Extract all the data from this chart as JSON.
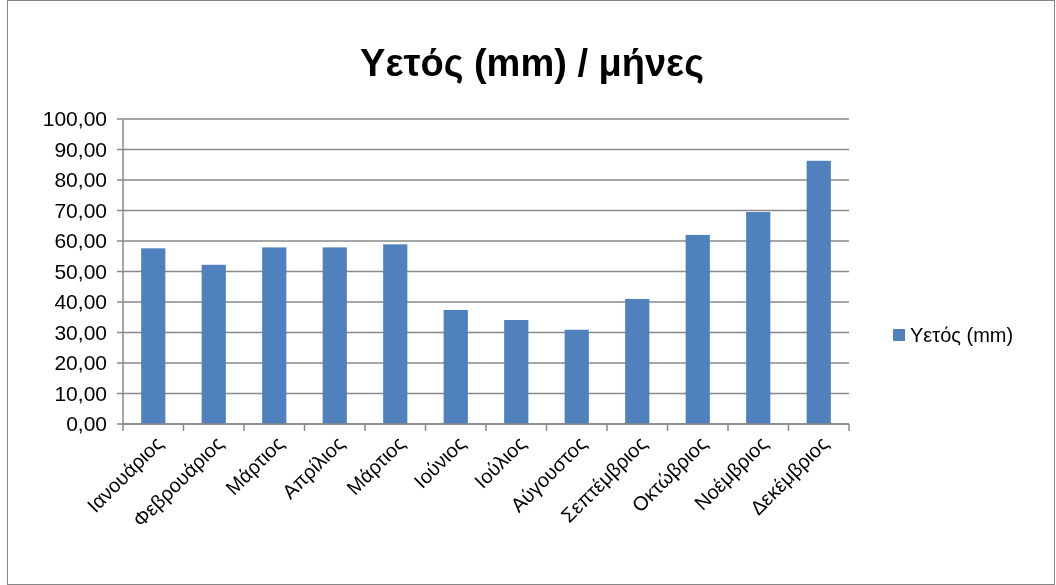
{
  "chart_data": {
    "type": "bar",
    "title": "Υετός (mm) / μήνες",
    "categories": [
      "Ιανουάριος",
      "Φεβρουάριος",
      "Μάρτιος",
      "Απρίλιος",
      "Μάρτιος",
      "Ιούνιος",
      "Ιούλιος",
      "Αύγουστος",
      "Σεπτέμβριος",
      "Οκτώβριος",
      "Νοέμβριος",
      "Δεκέμβριος"
    ],
    "series": [
      {
        "name": "Υετός (mm)",
        "color": "#4f81bd",
        "values": [
          57.6,
          52.2,
          57.9,
          57.9,
          58.9,
          37.4,
          34.1,
          30.9,
          41.0,
          62.0,
          69.5,
          86.3
        ]
      }
    ],
    "ylim": [
      0,
      100
    ],
    "yticks": [
      {
        "value": 0,
        "label": "0,00"
      },
      {
        "value": 10,
        "label": "10,00"
      },
      {
        "value": 20,
        "label": "20,00"
      },
      {
        "value": 30,
        "label": "30,00"
      },
      {
        "value": 40,
        "label": "40,00"
      },
      {
        "value": 50,
        "label": "50,00"
      },
      {
        "value": 60,
        "label": "60,00"
      },
      {
        "value": 70,
        "label": "70,00"
      },
      {
        "value": 80,
        "label": "80,00"
      },
      {
        "value": 90,
        "label": "90,00"
      },
      {
        "value": 100,
        "label": "100,00"
      }
    ],
    "grid": "y",
    "legend": "right"
  }
}
